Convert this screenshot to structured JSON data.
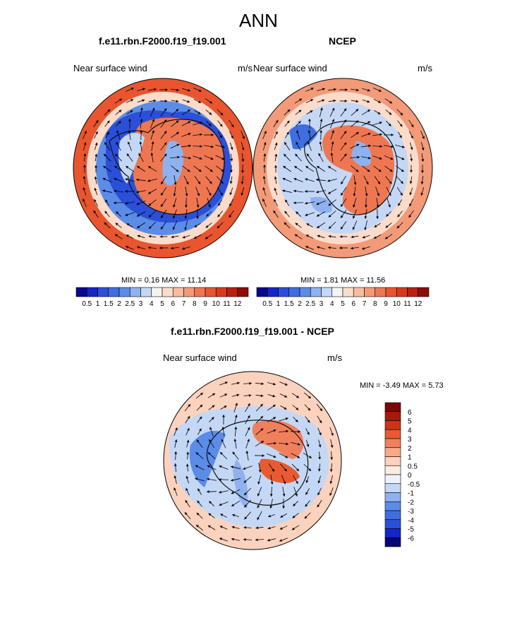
{
  "figure": {
    "title": "ANN"
  },
  "colors": {
    "abs_palette": [
      "#08088e",
      "#1525c8",
      "#2b4fd8",
      "#3f6ee0",
      "#5b8ce8",
      "#8fb2ef",
      "#c4d8f6",
      "#f4f4f4",
      "#fbdccb",
      "#f7bda0",
      "#f39a78",
      "#ee7752",
      "#e8552f",
      "#d83a1c",
      "#b82010",
      "#8e0c06"
    ],
    "diff_palette": [
      "#060678",
      "#1525c8",
      "#2b4fd8",
      "#3f6ee0",
      "#5b8ce8",
      "#8fb2ef",
      "#c4d8f6",
      "#eef3fb",
      "#fcebe0",
      "#fbd2bd",
      "#f7a98a",
      "#f0805c",
      "#e85a32",
      "#cc3318",
      "#a51a0c",
      "#7a0806"
    ],
    "land_outline": "#111111",
    "vector": "#000000"
  },
  "panels": {
    "left": {
      "title": "f.e11.rbn.F2000.f19_f19.001",
      "subtitle_left": "Near surface wind",
      "subtitle_right": "m/s",
      "min_max": "MIN =   0.16 MAX =  11.14"
    },
    "right": {
      "title": "NCEP",
      "subtitle_left": "Near surface wind",
      "subtitle_right": "m/s",
      "min_max": "MIN =   1.81 MAX =  11.56"
    },
    "diff": {
      "title": "f.e11.rbn.F2000.f19_f19.001 - NCEP",
      "subtitle_left": "Near surface wind",
      "subtitle_right": "m/s",
      "min_max": "MIN =  -3.49 MAX =   5.73"
    }
  },
  "chart_data": [
    {
      "type": "heatmap",
      "projection": "south polar stereographic",
      "title": "f.e11.rbn.F2000.f19_f19.001",
      "variable": "Near surface wind",
      "units": "m/s",
      "min": 0.16,
      "max": 11.14,
      "colorbar_levels": [
        0.5,
        1,
        1.5,
        2,
        2.5,
        3,
        4,
        5,
        6,
        7,
        8,
        9,
        10,
        11,
        12
      ],
      "colorbar_tick_labels": [
        "0.5",
        "1",
        "1.5",
        "2",
        "2.5",
        "3",
        "4",
        "5",
        "6",
        "7",
        "8",
        "9",
        "10",
        "11",
        "12"
      ],
      "colorbar_orientation": "horizontal"
    },
    {
      "type": "heatmap",
      "projection": "south polar stereographic",
      "title": "NCEP",
      "variable": "Near surface wind",
      "units": "m/s",
      "min": 1.81,
      "max": 11.56,
      "colorbar_levels": [
        0.5,
        1,
        1.5,
        2,
        2.5,
        3,
        4,
        5,
        6,
        7,
        8,
        9,
        10,
        11,
        12
      ],
      "colorbar_tick_labels": [
        "0.5",
        "1",
        "1.5",
        "2",
        "2.5",
        "3",
        "4",
        "5",
        "6",
        "7",
        "8",
        "9",
        "10",
        "11",
        "12"
      ],
      "colorbar_orientation": "horizontal"
    },
    {
      "type": "heatmap",
      "projection": "south polar stereographic",
      "title": "f.e11.rbn.F2000.f19_f19.001 - NCEP",
      "variable": "Near surface wind",
      "units": "m/s",
      "min": -3.49,
      "max": 5.73,
      "colorbar_levels": [
        6,
        5,
        4,
        3,
        2,
        1,
        0.5,
        0,
        -0.5,
        -1,
        -2,
        -3,
        -4,
        -5,
        -6
      ],
      "colorbar_tick_labels": [
        "6",
        "5",
        "4",
        "3",
        "2",
        "1",
        "0.5",
        "0",
        "-0.5",
        "-1",
        "-2",
        "-3",
        "-4",
        "-5",
        "-6"
      ],
      "colorbar_orientation": "vertical"
    }
  ]
}
